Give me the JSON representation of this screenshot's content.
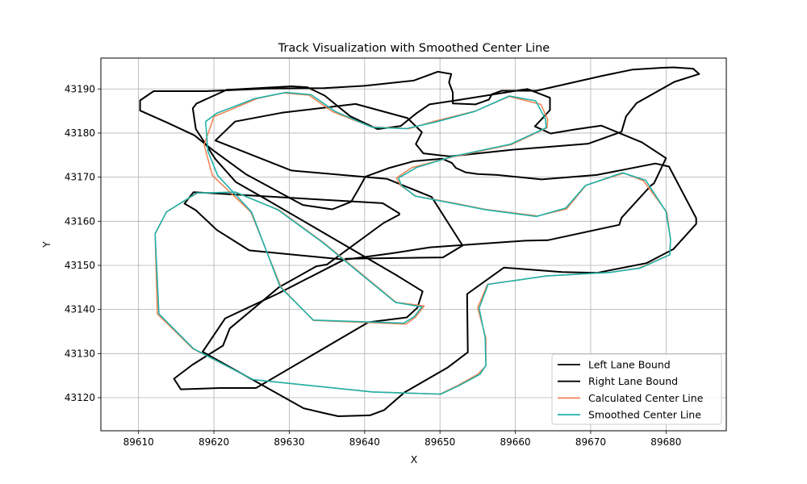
{
  "chart_data": {
    "type": "line",
    "title": "Track Visualization with Smoothed Center Line",
    "xlabel": "X",
    "ylabel": "Y",
    "xlim": [
      89605,
      89688
    ],
    "ylim": [
      43112.5,
      43197
    ],
    "xticks": [
      89610,
      89620,
      89630,
      89640,
      89650,
      89660,
      89670,
      89680
    ],
    "yticks": [
      43120,
      43130,
      43140,
      43150,
      43160,
      43170,
      43180,
      43190
    ],
    "grid": true,
    "legend_position": "lower-right",
    "series": [
      {
        "name": "Left Lane Bound",
        "color": "#000000",
        "x": [
          89617.6,
          89617.2,
          89617.7,
          89621.7,
          89630.3,
          89632.4,
          89634.7,
          89638.1,
          89641.7,
          89644.8,
          89646.9,
          89648.6,
          89652.1,
          89661.6,
          89664.6,
          89664.6,
          89662.6,
          89664.7,
          89667.8,
          89671.4,
          89676.8,
          89680,
          89678.4,
          89678,
          89674.1,
          89673.8,
          89664.3,
          89661.3,
          89648.7,
          89643.8,
          89637.4,
          89624.7,
          89620.4,
          89617.6,
          89616.1,
          89617.3,
          89642.4,
          89644.6,
          89644.6,
          89642.5,
          89635,
          89633.6,
          89628.6,
          89622.1,
          89621.2,
          89617.1,
          89614.7,
          89615.6,
          89620.8,
          89625.6,
          89640.5,
          89645.6,
          89647,
          89647.7,
          89644.2,
          89626.4,
          89622.9,
          89620.2,
          89617.6
        ],
        "y": [
          43180.9,
          43185.6,
          43186.7,
          43189.8,
          43190.6,
          43190.4,
          43188.5,
          43183.8,
          43180.9,
          43181.6,
          43184.5,
          43186.5,
          43187.4,
          43190,
          43188,
          43185.2,
          43181.5,
          43179.9,
          43180.8,
          43181.7,
          43177.9,
          43174.3,
          43168.6,
          43168.1,
          43160.8,
          43159.2,
          43155.7,
          43155.6,
          43154.1,
          43152.8,
          43151.3,
          43153.4,
          43158,
          43162.5,
          43164,
          43166.6,
          43164.1,
          43161.8,
          43161.5,
          43159.6,
          43150.2,
          43149.8,
          43145,
          43135.7,
          43131.8,
          43127.4,
          43124.3,
          43121.9,
          43122.2,
          43122.2,
          43137.1,
          43138.2,
          43140.4,
          43144.1,
          43147.8,
          43165.5,
          43168.9,
          43174.1,
          43180.9
        ]
      },
      {
        "name": "Right Lane Bound",
        "color": "#000000",
        "x": [
          89620.2,
          89622.8,
          89629,
          89638.8,
          89645.7,
          89647.6,
          89646.8,
          89647.8,
          89651.3,
          89659.5,
          89669.7,
          89674.1,
          89674.7,
          89676.1,
          89681.1,
          89684.4,
          89683.6,
          89681,
          89679.5,
          89675.6,
          89671.6,
          89662.8,
          89658.2,
          89656.9,
          89656.5,
          89654.7,
          89651.7,
          89651.7,
          89651.2,
          89651.5,
          89649.7,
          89646.5,
          89640,
          89634.6,
          89627.3,
          89619,
          89612,
          89610.2,
          89610.2,
          89613.9,
          89617.4,
          89619.8,
          89624.3,
          89631.8,
          89635.7,
          89638.2,
          89639.2,
          89640.1,
          89643.3,
          89646.5,
          89650.3,
          89651.6,
          89652.1,
          89653.4,
          89655,
          89657.6,
          89663.5,
          89670.8,
          89678.6,
          89680.4,
          89684,
          89684,
          89681,
          89677.4,
          89670.8,
          89666.2,
          89658.5,
          89653.6,
          89653.7,
          89651,
          89645.3,
          89642.6,
          89640.7,
          89636.5,
          89634.4,
          89631.9,
          89627.1,
          89618.5,
          89621.5,
          89628.5,
          89637.5,
          89650.4,
          89653,
          89648.9,
          89643,
          89630.3,
          89620.2
        ],
        "y": [
          43178.3,
          43182.6,
          43184.6,
          43186.6,
          43183.4,
          43180.2,
          43177.5,
          43175.4,
          43174.7,
          43176.2,
          43177.6,
          43180.3,
          43183.8,
          43186.8,
          43191.6,
          43193.4,
          43194.6,
          43194.9,
          43194.8,
          43194.4,
          43193,
          43189.6,
          43189.6,
          43188.8,
          43187.6,
          43186.5,
          43186.7,
          43189.2,
          43191.5,
          43193.4,
          43193.9,
          43191.9,
          43190.7,
          43190.2,
          43190.1,
          43189.5,
          43189.5,
          43187.4,
          43185.1,
          43182.3,
          43179.5,
          43176.2,
          43170.6,
          43163.7,
          43162.7,
          43164.4,
          43167.3,
          43170.1,
          43172.1,
          43173.6,
          43174.2,
          43173.2,
          43172.1,
          43171.1,
          43170.7,
          43170.5,
          43169.5,
          43170.5,
          43173.1,
          43172.4,
          43160.7,
          43159.4,
          43153.7,
          43150.5,
          43148.3,
          43148.5,
          43149.5,
          43143.5,
          43130.3,
          43126.8,
          43121.2,
          43117.2,
          43116,
          43115.8,
          43116.6,
          43117.6,
          43122.2,
          43130.4,
          43138,
          43143.6,
          43151.5,
          43151.8,
          43154.5,
          43165.5,
          43169.6,
          43171.5,
          43178.3
        ]
      },
      {
        "name": "Calculated Center Line",
        "color": "#f08050",
        "x": [
          89618.7,
          89620,
          89625.7,
          89629.3,
          89632.6,
          89635.8,
          89640.9,
          89645.9,
          89649.3,
          89654.7,
          89659.2,
          89663.4,
          89664.3,
          89664.2,
          89659.5,
          89651.7,
          89646.3,
          89644.2,
          89644.8,
          89646.8,
          89651.6,
          89656,
          89663,
          89666.8,
          89669.4,
          89674.4,
          89677,
          89680.1,
          89680.6,
          89680.5,
          89676.4,
          89672.5,
          89664.1,
          89656.3,
          89655,
          89656.1,
          89656.1,
          89655,
          89652.4,
          89650,
          89641,
          89625.2,
          89617.2,
          89612.5,
          89612.2,
          89613.7,
          89617.8,
          89622.8,
          89628.6,
          89634.6,
          89640.5,
          89644.2,
          89647.9,
          89646.7,
          89645.5,
          89633.2,
          89628.9,
          89624.9,
          89619.8,
          89618.7
        ],
        "y": [
          43177.3,
          43183.7,
          43187.8,
          43189.1,
          43188.6,
          43184.8,
          43181.4,
          43181,
          43182.7,
          43185,
          43188.3,
          43186.5,
          43183.1,
          43181.2,
          43177.4,
          43174.6,
          43172.2,
          43169.8,
          43168.1,
          43165.7,
          43164.2,
          43162.7,
          43161.2,
          43162.8,
          43168.2,
          43170.9,
          43169.2,
          43162.1,
          43155.9,
          43152.4,
          43149.4,
          43148.4,
          43147.6,
          43145.7,
          43140.4,
          43133.5,
          43127.2,
          43125.3,
          43122.8,
          43120.8,
          43121.3,
          43124.1,
          43131.1,
          43139,
          43157.1,
          43162.1,
          43166.4,
          43166.6,
          43162.6,
          43155.1,
          43146.8,
          43141.6,
          43140.8,
          43138.2,
          43136.7,
          43137.5,
          43145.1,
          43162.1,
          43170.4,
          43177.3
        ]
      },
      {
        "name": "Smoothed Center Line",
        "color": "#20b2aa",
        "x": [
          89619.2,
          89618.9,
          89620.4,
          89625.4,
          89629.5,
          89632.9,
          89636.1,
          89641,
          89645.5,
          89649.4,
          89654.6,
          89659.2,
          89662.7,
          89664,
          89664.1,
          89659.4,
          89651.7,
          89646.9,
          89644.5,
          89644.9,
          89646.7,
          89651.3,
          89656.1,
          89662.8,
          89666.7,
          89669.3,
          89674.2,
          89677.3,
          89680,
          89680.6,
          89680.5,
          89676.6,
          89672.6,
          89664.1,
          89656.4,
          89655.2,
          89656,
          89656.1,
          89655.3,
          89652.6,
          89650.1,
          89641.1,
          89625.2,
          89617.3,
          89612.7,
          89612.2,
          89613.7,
          89617.7,
          89622.9,
          89628.5,
          89634.5,
          89640.4,
          89644.1,
          89647.6,
          89646.6,
          89645.2,
          89633.2,
          89628.8,
          89625,
          89620.5,
          89619.2
        ],
        "y": [
          43175.9,
          43182.6,
          43184.5,
          43187.8,
          43189.2,
          43188.7,
          43184.9,
          43181.3,
          43181,
          43182.5,
          43184.9,
          43188.4,
          43187.3,
          43183.2,
          43181.2,
          43177.5,
          43174.7,
          43172.2,
          43169.8,
          43168.1,
          43165.7,
          43164.2,
          43162.6,
          43161.1,
          43163,
          43168.1,
          43171,
          43169.3,
          43162.2,
          43155.9,
          43152.4,
          43149.4,
          43148.4,
          43147.6,
          43145.7,
          43140.3,
          43133.6,
          43127.3,
          43125.3,
          43122.8,
          43120.8,
          43121.3,
          43124.1,
          43131.1,
          43139,
          43157.2,
          43162.1,
          43166.4,
          43166.6,
          43162.6,
          43155.1,
          43146.8,
          43141.6,
          43140.6,
          43138.4,
          43136.9,
          43137.6,
          43145.1,
          43162.1,
          43170.4,
          43175.9
        ]
      }
    ]
  }
}
